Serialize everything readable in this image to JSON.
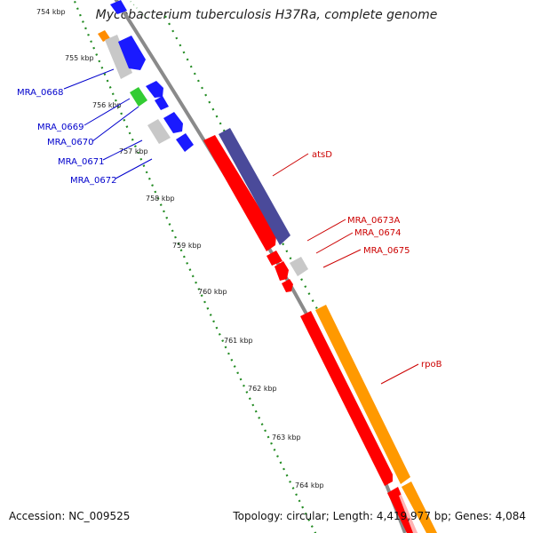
{
  "title": "Mycobacterium tuberculosis H37Ra, complete genome",
  "footer": {
    "accession": "Accession: NC_009525",
    "info": "Topology: circular; Length: 4,419,977 bp; Genes: 4,084"
  },
  "colors": {
    "backbone": "#888888",
    "scale_ticks": "#228B22",
    "label_blue": "#0000cc",
    "label_red": "#cc0000",
    "blue": "#1a1aff",
    "red": "#ff0000",
    "gray": "#c8c8c8",
    "green": "#33cc33",
    "orange": "#ff8c00",
    "navy": "#4a4a9a"
  },
  "scale": {
    "unit": "kbp",
    "ticks": [
      {
        "label": "754 kbp",
        "pos": 754
      },
      {
        "label": "755 kbp",
        "pos": 755
      },
      {
        "label": "756 kbp",
        "pos": 756
      },
      {
        "label": "757 kbp",
        "pos": 757
      },
      {
        "label": "758 kbp",
        "pos": 758
      },
      {
        "label": "759 kbp",
        "pos": 759
      },
      {
        "label": "760 kbp",
        "pos": 760
      },
      {
        "label": "761 kbp",
        "pos": 761
      },
      {
        "label": "762 kbp",
        "pos": 762
      },
      {
        "label": "763 kbp",
        "pos": 763
      },
      {
        "label": "764 kbp",
        "pos": 764
      }
    ]
  },
  "genes": [
    {
      "label": "MRA_0668",
      "color": "blue",
      "strand": "inner"
    },
    {
      "label": "MRA_0669",
      "color": "green",
      "strand": "inner"
    },
    {
      "label": "MRA_0670",
      "color": "blue",
      "strand": "inner"
    },
    {
      "label": "MRA_0671",
      "color": "gray",
      "strand": "inner"
    },
    {
      "label": "MRA_0672",
      "color": "blue",
      "strand": "inner"
    },
    {
      "label": "atsD",
      "color": "navy",
      "strand": "outer"
    },
    {
      "label": "MRA_0673A",
      "color": "red",
      "strand": "inner"
    },
    {
      "label": "MRA_0674",
      "color": "red",
      "strand": "inner"
    },
    {
      "label": "MRA_0675",
      "color": "gray",
      "strand": "outer"
    },
    {
      "label": "rpoB",
      "color": "orange",
      "strand": "outer"
    }
  ]
}
